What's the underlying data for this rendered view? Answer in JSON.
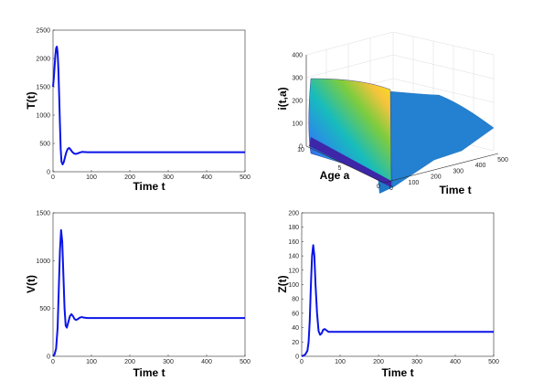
{
  "chart_data": [
    {
      "id": "T",
      "type": "line",
      "xlabel": "Time t",
      "ylabel": "T(t)",
      "xlim": [
        0,
        500
      ],
      "ylim": [
        0,
        2500
      ],
      "xticks": [
        0,
        100,
        200,
        300,
        400,
        500
      ],
      "yticks": [
        0,
        500,
        1000,
        1500,
        2000,
        2500
      ],
      "color": "#0a14e6",
      "series": [
        {
          "x": [
            0,
            2,
            4,
            6,
            8,
            10,
            12,
            14,
            16,
            18,
            20,
            22,
            25,
            28,
            31,
            34,
            38,
            42,
            46,
            50,
            55,
            60,
            65,
            70,
            75,
            80,
            90,
            100,
            150,
            200,
            300,
            400,
            500
          ],
          "y": [
            1500,
            1650,
            1850,
            2050,
            2180,
            2210,
            2100,
            1800,
            1350,
            850,
            400,
            180,
            130,
            170,
            250,
            330,
            400,
            420,
            390,
            350,
            320,
            315,
            325,
            340,
            350,
            348,
            345,
            345,
            345,
            345,
            345,
            345,
            345
          ]
        }
      ]
    },
    {
      "id": "i",
      "type": "surface",
      "xlabel": "Time t",
      "ylabel": "Age a",
      "zlabel": "i(t,a)",
      "xlim": [
        0,
        500
      ],
      "ylim": [
        0,
        10
      ],
      "zlim": [
        0,
        400
      ],
      "xticks": [
        0,
        100,
        200,
        300,
        400,
        500
      ],
      "yticks": [
        0,
        5,
        10
      ],
      "zticks": [
        0,
        100,
        200,
        300,
        400
      ],
      "colormap": [
        "#3e26a8",
        "#2f80f1",
        "#17bcbd",
        "#7ecc3e",
        "#f6c43c",
        "#fbe517"
      ],
      "surface_color": "#2480d0"
    },
    {
      "id": "V",
      "type": "line",
      "xlabel": "Time t",
      "ylabel": "V(t)",
      "xlim": [
        0,
        500
      ],
      "ylim": [
        0,
        1500
      ],
      "xticks": [
        0,
        100,
        200,
        300,
        400,
        500
      ],
      "yticks": [
        0,
        500,
        1000,
        1500
      ],
      "color": "#0a14e6",
      "series": [
        {
          "x": [
            0,
            4,
            8,
            12,
            15,
            18,
            21,
            24,
            27,
            30,
            33,
            36,
            40,
            44,
            48,
            52,
            56,
            60,
            65,
            70,
            75,
            80,
            90,
            100,
            150,
            200,
            300,
            400,
            500
          ],
          "y": [
            0,
            20,
            80,
            300,
            700,
            1100,
            1320,
            1200,
            850,
            500,
            320,
            300,
            360,
            420,
            440,
            420,
            390,
            380,
            390,
            405,
            410,
            405,
            400,
            400,
            400,
            400,
            400,
            400,
            400
          ]
        }
      ]
    },
    {
      "id": "Z",
      "type": "line",
      "xlabel": "Time t",
      "ylabel": "Z(t)",
      "xlim": [
        0,
        500
      ],
      "ylim": [
        0,
        200
      ],
      "xticks": [
        0,
        100,
        200,
        300,
        400,
        500
      ],
      "yticks": [
        0,
        20,
        40,
        60,
        80,
        100,
        120,
        140,
        160,
        180,
        200
      ],
      "color": "#0a14e6",
      "series": [
        {
          "x": [
            0,
            5,
            10,
            15,
            18,
            21,
            24,
            27,
            30,
            33,
            36,
            40,
            44,
            48,
            52,
            56,
            60,
            65,
            70,
            75,
            80,
            90,
            100,
            150,
            200,
            300,
            400,
            500
          ],
          "y": [
            0,
            1,
            3,
            8,
            20,
            50,
            100,
            140,
            155,
            140,
            100,
            60,
            35,
            30,
            32,
            37,
            38,
            36,
            34,
            34,
            34,
            34,
            34,
            34,
            34,
            34,
            34,
            34
          ]
        }
      ]
    }
  ]
}
